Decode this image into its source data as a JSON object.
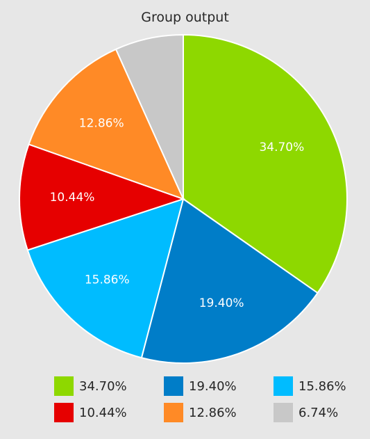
{
  "chart_data": {
    "type": "pie",
    "title": "Group output",
    "slices": [
      {
        "label": "34.70%",
        "value": 34.7,
        "color": "#8ed800"
      },
      {
        "label": "19.40%",
        "value": 19.4,
        "color": "#007dc8"
      },
      {
        "label": "15.86%",
        "value": 15.86,
        "color": "#00bcff"
      },
      {
        "label": "10.44%",
        "value": 10.44,
        "color": "#e60000"
      },
      {
        "label": "12.86%",
        "value": 12.86,
        "color": "#ff8a26"
      },
      {
        "label": "6.74%",
        "value": 6.74,
        "color": "#c8c8c8"
      }
    ],
    "slice_labels_shown": [
      "34.70%",
      "19.40%",
      "15.86%",
      "10.44%",
      "12.86%"
    ],
    "legend": {
      "placement": "bottom",
      "items": [
        {
          "label": "34.70%",
          "color": "#8ed800"
        },
        {
          "label": "19.40%",
          "color": "#007dc8"
        },
        {
          "label": "15.86%",
          "color": "#00bcff"
        },
        {
          "label": "10.44%",
          "color": "#e60000"
        },
        {
          "label": "12.86%",
          "color": "#ff8a26"
        },
        {
          "label": "6.74%",
          "color": "#c8c8c8"
        }
      ]
    }
  }
}
